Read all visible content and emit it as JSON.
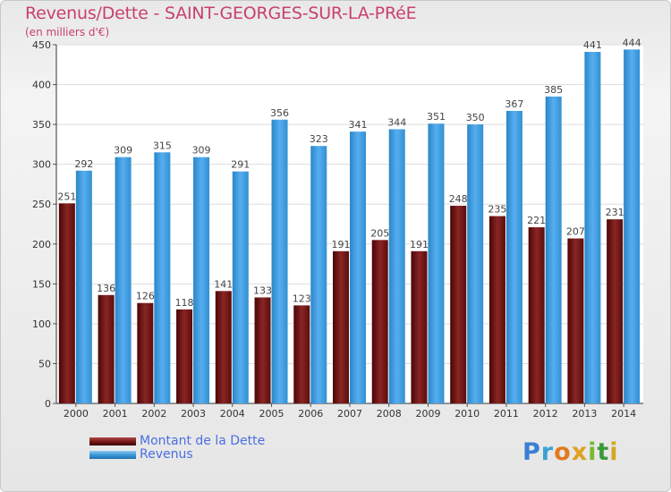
{
  "title": "Revenus/Dette - SAINT-GEORGES-SUR-LA-PRéE",
  "subtitle": "(en milliers d'€)",
  "logo": {
    "letters": [
      "P",
      "r",
      "o",
      "x",
      "i",
      "t",
      "i"
    ],
    "colors": [
      "#3a7fd4",
      "#3aa1d4",
      "#e07b1f",
      "#e0a11f",
      "#7ab82e",
      "#3a9a3a",
      "#d4a71f"
    ]
  },
  "colors": {
    "dette": "#7a1a1a",
    "revenus": "#3d9ad9",
    "title": "#c8406e",
    "legend_text": "#4a6fe0"
  },
  "chart_data": {
    "type": "bar",
    "categories": [
      "2000",
      "2001",
      "2002",
      "2003",
      "2004",
      "2005",
      "2006",
      "2007",
      "2008",
      "2009",
      "2010",
      "2011",
      "2012",
      "2013",
      "2014"
    ],
    "series": [
      {
        "name": "Montant de la Dette",
        "values": [
          251,
          136,
          126,
          118,
          141,
          133,
          123,
          191,
          205,
          191,
          248,
          235,
          221,
          207,
          231
        ]
      },
      {
        "name": "Revenus",
        "values": [
          292,
          309,
          315,
          309,
          291,
          356,
          323,
          341,
          344,
          351,
          350,
          367,
          385,
          441,
          444
        ]
      }
    ],
    "data_labels": [
      [
        "251",
        "136",
        "126",
        "118",
        "141",
        "133",
        "123",
        "191",
        "205",
        "191",
        "248",
        "235",
        "221",
        "207",
        "231"
      ],
      [
        "292",
        "309",
        "315",
        "309",
        "291",
        "356",
        "323",
        "341",
        "344",
        "351",
        "350",
        "367",
        "385",
        "441",
        "444"
      ]
    ],
    "ylim": [
      0,
      450
    ],
    "yticks": [
      0,
      50,
      100,
      150,
      200,
      250,
      300,
      350,
      400,
      450
    ],
    "grid": true
  },
  "legend": {
    "items": [
      "Montant de la Dette",
      "Revenus"
    ]
  }
}
